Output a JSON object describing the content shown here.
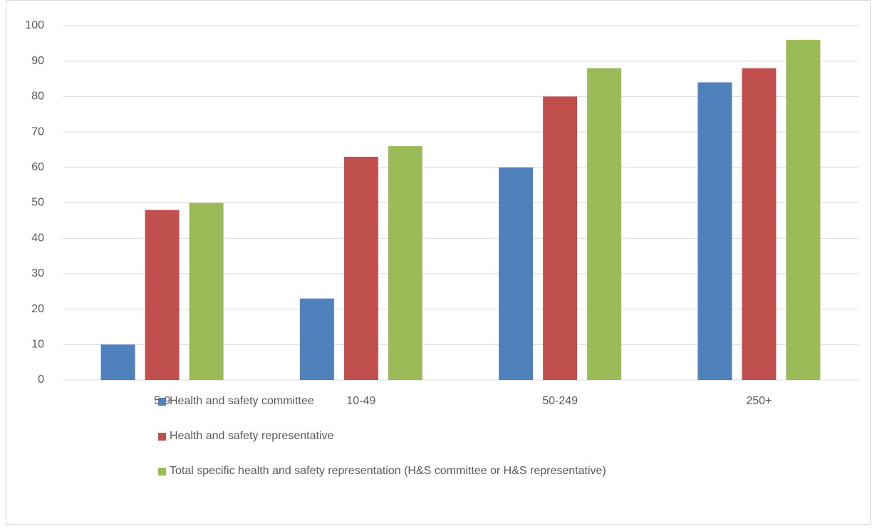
{
  "chart_data": {
    "type": "bar",
    "categories": [
      "5-9",
      "10-49",
      "50-249",
      "250+"
    ],
    "series": [
      {
        "name": "Health and safety committee",
        "color": "#4f81bd",
        "values": [
          10,
          23,
          60,
          84
        ]
      },
      {
        "name": "Health and safety representative",
        "color": "#c0504d",
        "values": [
          48,
          63,
          80,
          88
        ]
      },
      {
        "name": "Total specific health and safety representation (H&S committee or H&S representative)",
        "color": "#9bbb59",
        "values": [
          50,
          66,
          88,
          96
        ]
      }
    ],
    "ylim": [
      0,
      100
    ],
    "yticks": [
      0,
      10,
      20,
      30,
      40,
      50,
      60,
      70,
      80,
      90,
      100
    ],
    "grid": true,
    "legend": "bottom"
  }
}
